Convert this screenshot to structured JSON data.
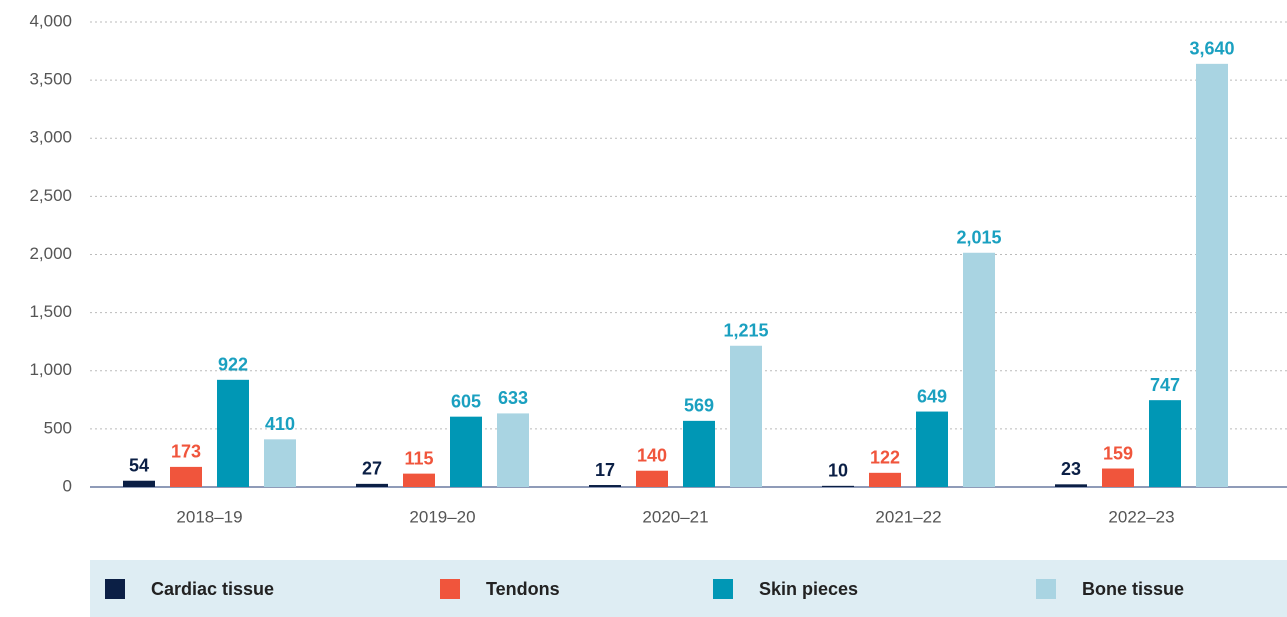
{
  "chart_data": {
    "type": "bar",
    "categories": [
      "2018–19",
      "2019–20",
      "2020–21",
      "2021–22",
      "2022–23"
    ],
    "series": [
      {
        "name": "Cardiac tissue",
        "color": "#0b1f45",
        "label_color": "#0b1f45",
        "values": [
          54,
          27,
          17,
          10,
          23
        ]
      },
      {
        "name": "Tendons",
        "color": "#f0553c",
        "label_color": "#f0553c",
        "values": [
          173,
          115,
          140,
          122,
          159
        ]
      },
      {
        "name": "Skin pieces",
        "color": "#0097b5",
        "label_color": "#1aa0c0",
        "values": [
          922,
          605,
          569,
          649,
          747
        ]
      },
      {
        "name": "Bone tissue",
        "color": "#a9d4e2",
        "label_color": "#1aa0c0",
        "values": [
          410,
          633,
          1215,
          2015,
          3640
        ],
        "value_labels": [
          "410",
          "633",
          "1,215",
          "2,015",
          "3,640"
        ]
      }
    ],
    "ylim": [
      0,
      4000
    ],
    "yticks": [
      0,
      500,
      {
        "value": 1000,
        "label": "1,000"
      },
      {
        "value": 1500,
        "label": "1,500"
      },
      {
        "value": 2000,
        "label": "2,000"
      },
      {
        "value": 2500,
        "label": "2,500"
      },
      {
        "value": 3000,
        "label": "3,000"
      },
      {
        "value": 3500,
        "label": "3,500"
      },
      {
        "value": 4000,
        "label": "4,000"
      }
    ],
    "grid": true
  }
}
